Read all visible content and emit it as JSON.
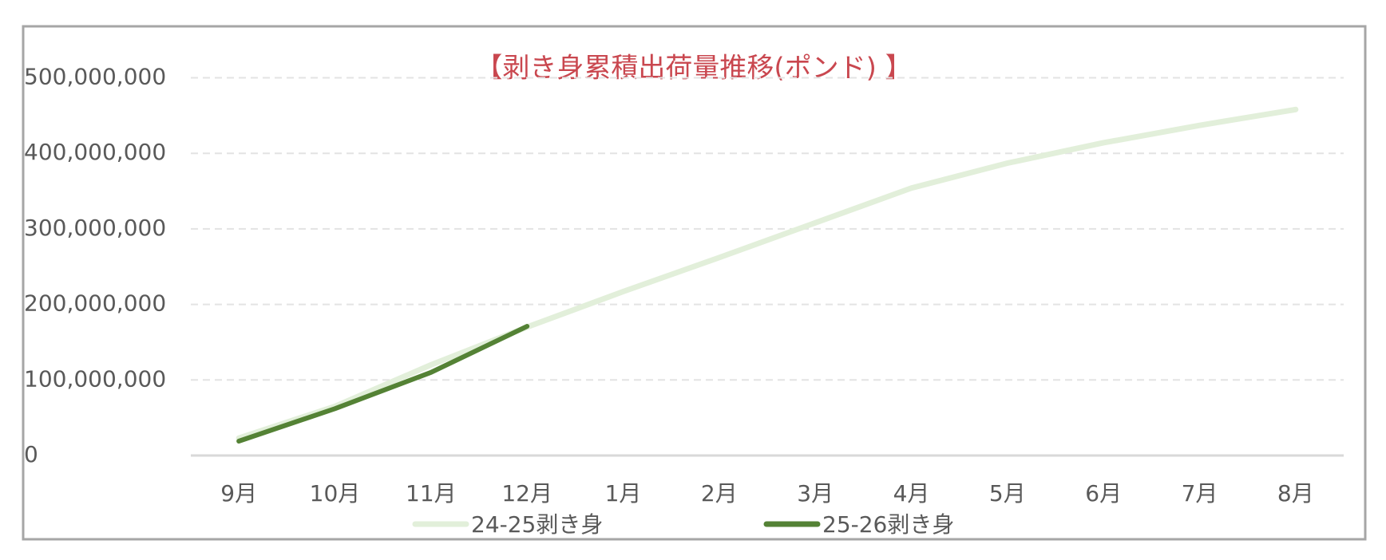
{
  "chart_data": {
    "type": "line",
    "title": "【剥き身累積出荷量推移(ポンド) 】",
    "categories": [
      "9月",
      "10月",
      "11月",
      "12月",
      "1月",
      "2月",
      "3月",
      "4月",
      "5月",
      "6月",
      "7月",
      "8月"
    ],
    "series": [
      {
        "name": "24-25剥き身",
        "color": "#e2efda",
        "values": [
          23000000,
          65000000,
          120000000,
          170000000,
          217000000,
          262000000,
          308000000,
          354000000,
          387000000,
          414000000,
          437000000,
          458000000
        ]
      },
      {
        "name": "25-26剥き身",
        "color": "#548235",
        "values": [
          19000000,
          62000000,
          110000000,
          171000000,
          null,
          null,
          null,
          null,
          null,
          null,
          null,
          null
        ]
      }
    ],
    "ylim": [
      0,
      500000000
    ],
    "yticks": [
      0,
      {
        "value": 100000000,
        "label": "100,000,000"
      },
      {
        "value": 200000000,
        "label": "200,000,000"
      },
      {
        "value": 300000000,
        "label": "300,000,000"
      },
      {
        "value": 400000000,
        "label": "400,000,000"
      },
      {
        "value": 500000000,
        "label": "500,000,000"
      }
    ],
    "grid": true,
    "legend": "bottom"
  }
}
